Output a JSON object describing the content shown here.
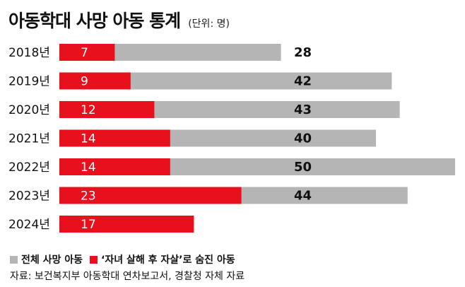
{
  "header": {
    "title": "아동학대 사망 아동 통계",
    "unit": "(단위: 명)"
  },
  "legend": {
    "total_label": "전체 사망 아동",
    "concealed_label": "‘자녀 살해 후 자살’로 숨진 아동"
  },
  "source": "자료: 보건복지부 아동학대 연차보고서, 경찰청 자체 자료",
  "colors": {
    "total": "#b5b5b5",
    "concealed": "#e8101c"
  },
  "chart_data": {
    "type": "bar",
    "orientation": "horizontal",
    "stacking": "overlay",
    "categories": [
      "2018년",
      "2019년",
      "2020년",
      "2021년",
      "2022년",
      "2023년",
      "2024년"
    ],
    "series": [
      {
        "name": "전체 사망 아동",
        "values": [
          28,
          42,
          43,
          40,
          50,
          44,
          null
        ]
      },
      {
        "name": "‘자녀 살해 후 자살’로 숨진 아동",
        "values": [
          7,
          9,
          12,
          14,
          14,
          23,
          17
        ]
      }
    ],
    "xlim": [
      0,
      50
    ],
    "grid": false,
    "legend_position": "bottom-left"
  }
}
